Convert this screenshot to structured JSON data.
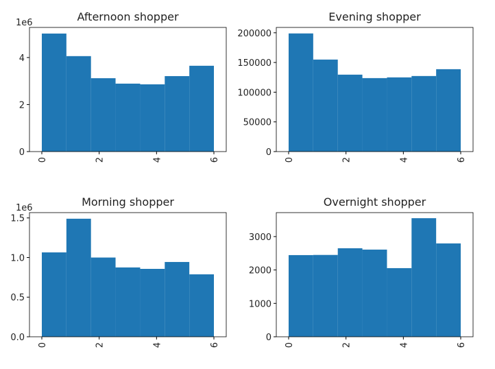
{
  "chart_data": [
    {
      "type": "histogram",
      "title": "Afternoon shopper",
      "offset_label": "1e6",
      "color": "#1f77b4",
      "bins": [
        0,
        0.857,
        1.714,
        2.571,
        3.429,
        4.286,
        5.143,
        6
      ],
      "values": [
        5020000,
        4060000,
        3120000,
        2890000,
        2860000,
        3210000,
        3650000
      ],
      "xlim": [
        -0.43,
        6.43
      ],
      "xticks": [
        0,
        2,
        4,
        6
      ],
      "ylim": [
        0,
        5280000
      ],
      "yticks": [
        {
          "value": 0,
          "label": "0"
        },
        {
          "value": 2000000,
          "label": "2"
        },
        {
          "value": 4000000,
          "label": "4"
        }
      ]
    },
    {
      "type": "histogram",
      "title": "Evening shopper",
      "color": "#1f77b4",
      "bins": [
        0,
        0.857,
        1.714,
        2.571,
        3.429,
        4.286,
        5.143,
        6
      ],
      "values": [
        198900,
        154900,
        129500,
        123700,
        124900,
        127200,
        138700
      ],
      "xlim": [
        -0.43,
        6.43
      ],
      "xticks": [
        0,
        2,
        4,
        6
      ],
      "ylim": [
        0,
        209000
      ],
      "yticks": [
        0,
        50000,
        100000,
        150000,
        200000
      ]
    },
    {
      "type": "histogram",
      "title": "Morning shopper",
      "offset_label": "1e6",
      "color": "#1f77b4",
      "bins": [
        0,
        0.857,
        1.714,
        2.571,
        3.429,
        4.286,
        5.143,
        6
      ],
      "values": [
        1065000,
        1490000,
        1000000,
        875000,
        857000,
        944000,
        788000
      ],
      "xlim": [
        -0.43,
        6.43
      ],
      "xticks": [
        0,
        2,
        4,
        6
      ],
      "ylim": [
        0,
        1567000
      ],
      "yticks": [
        {
          "value": 0,
          "label": "0.0"
        },
        {
          "value": 500000,
          "label": "0.5"
        },
        {
          "value": 1000000,
          "label": "1.0"
        },
        {
          "value": 1500000,
          "label": "1.5"
        }
      ]
    },
    {
      "type": "histogram",
      "title": "Overnight shopper",
      "color": "#1f77b4",
      "bins": [
        0,
        0.857,
        1.714,
        2.571,
        3.429,
        4.286,
        5.143,
        6
      ],
      "values": [
        2445,
        2450,
        2650,
        2610,
        2055,
        3550,
        2795
      ],
      "xlim": [
        -0.43,
        6.43
      ],
      "xticks": [
        0,
        2,
        4,
        6
      ],
      "ylim": [
        0,
        3717
      ],
      "yticks": [
        0,
        1000,
        2000,
        3000
      ]
    }
  ]
}
